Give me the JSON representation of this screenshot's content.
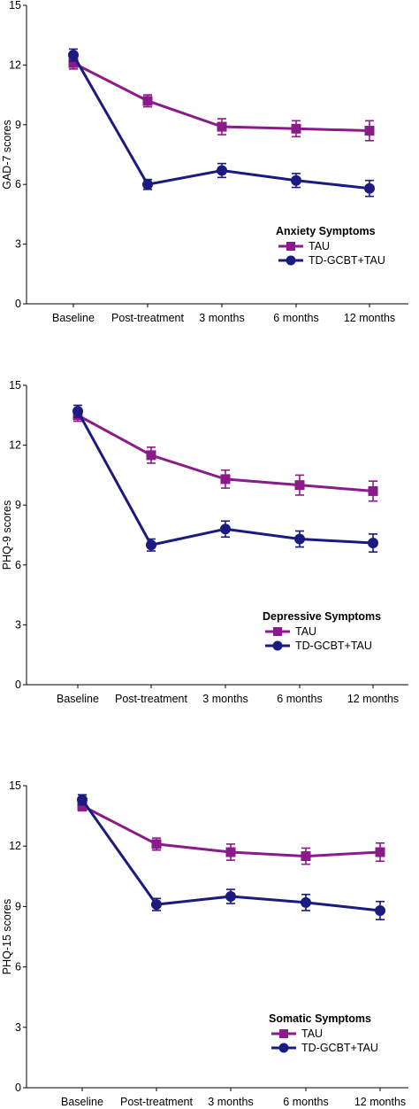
{
  "colors": {
    "TAU": "#8B1A8B",
    "TD-GCBT+TAU": "#1A1A80",
    "axis": "#000000"
  },
  "chart_data": [
    {
      "type": "line",
      "title": "",
      "xlabel": "",
      "ylabel": "GAD-7 scores",
      "legend_title": "Anxiety Symptoms",
      "legend_position": "right",
      "ylim": [
        0,
        15
      ],
      "yticks": [
        "0",
        "3",
        "6",
        "9",
        "12",
        "15"
      ],
      "categories": [
        "Baseline",
        "Post-treatment",
        "3 months",
        "6 months",
        "12 months"
      ],
      "series": [
        {
          "name": "TAU",
          "marker": "square",
          "values": [
            12.1,
            10.2,
            8.9,
            8.8,
            8.7
          ],
          "err": [
            0.3,
            0.3,
            0.4,
            0.4,
            0.5
          ]
        },
        {
          "name": "TD-GCBT+TAU",
          "marker": "circle",
          "values": [
            12.5,
            6.0,
            6.7,
            6.2,
            5.8
          ],
          "err": [
            0.3,
            0.25,
            0.35,
            0.35,
            0.4
          ]
        }
      ]
    },
    {
      "type": "line",
      "title": "",
      "xlabel": "",
      "ylabel": "PHQ-9 scores",
      "legend_title": "Depressive Symptoms",
      "legend_position": "right",
      "ylim": [
        0,
        15
      ],
      "yticks": [
        "0",
        "3",
        "6",
        "9",
        "12",
        "15"
      ],
      "categories": [
        "Baseline",
        "Post-treatment",
        "3 months",
        "6 months",
        "12 months"
      ],
      "series": [
        {
          "name": "TAU",
          "marker": "square",
          "values": [
            13.5,
            11.5,
            10.3,
            10.0,
            9.7
          ],
          "err": [
            0.3,
            0.4,
            0.45,
            0.5,
            0.5
          ]
        },
        {
          "name": "TD-GCBT+TAU",
          "marker": "circle",
          "values": [
            13.7,
            7.0,
            7.8,
            7.3,
            7.1
          ],
          "err": [
            0.3,
            0.3,
            0.4,
            0.4,
            0.45
          ]
        }
      ]
    },
    {
      "type": "line",
      "title": "",
      "xlabel": "",
      "ylabel": "PHQ-15 scores",
      "legend_title": "Somatic Symptoms",
      "legend_position": "right",
      "ylim": [
        0,
        15
      ],
      "yticks": [
        "0",
        "3",
        "6",
        "9",
        "12",
        "15"
      ],
      "categories": [
        "Baseline",
        "Post-treatment",
        "3 months",
        "6 months",
        "12 months"
      ],
      "series": [
        {
          "name": "TAU",
          "marker": "square",
          "values": [
            14.0,
            12.1,
            11.7,
            11.5,
            11.7
          ],
          "err": [
            0.25,
            0.3,
            0.4,
            0.4,
            0.45
          ]
        },
        {
          "name": "TD-GCBT+TAU",
          "marker": "circle",
          "values": [
            14.3,
            9.1,
            9.5,
            9.2,
            8.8
          ],
          "err": [
            0.25,
            0.3,
            0.35,
            0.4,
            0.45
          ]
        }
      ]
    }
  ]
}
